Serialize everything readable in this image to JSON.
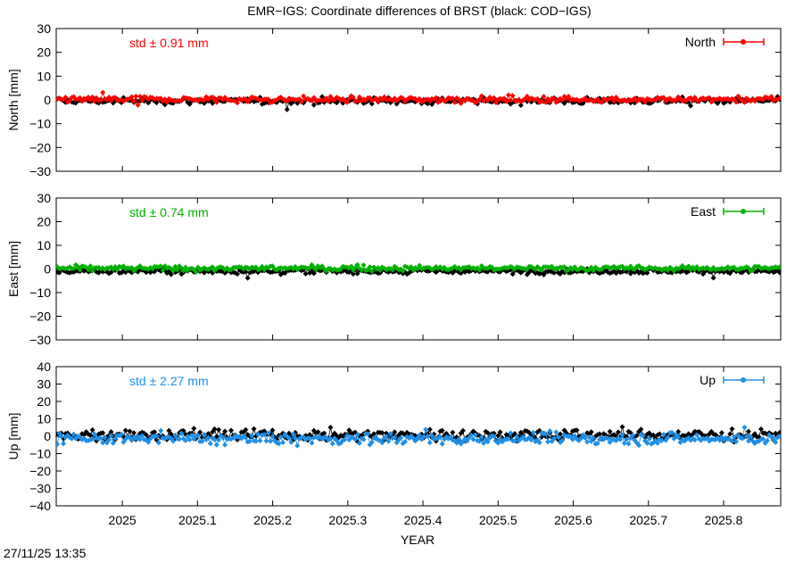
{
  "chart_data": {
    "type": "scatter",
    "title": "EMR−IGS: Coordinate differences of BRST (black: COD−IGS)",
    "xlabel": "YEAR",
    "xlim": [
      2024.912,
      2025.876
    ],
    "xticks": [
      "2025",
      "2025.1",
      "2025.2",
      "2025.3",
      "2025.4",
      "2025.5",
      "2025.6",
      "2025.7",
      "2025.8"
    ],
    "grid": false,
    "panels": [
      {
        "ylabel": "North [mm]",
        "ylim": [
          -30,
          30
        ],
        "yticks": [
          "30",
          "20",
          "10",
          "0",
          "−10",
          "−20",
          "−30"
        ],
        "legend": "North",
        "legend_position": "top-right",
        "std_label": "std ± 0.91 mm",
        "color": "#ff0000",
        "series": [
          {
            "name": "EMR−IGS",
            "color": "#ff0000",
            "mean": 0.2,
            "std": 0.91
          },
          {
            "name": "COD−IGS",
            "color": "#000000",
            "mean": -0.4,
            "std": 0.9
          }
        ]
      },
      {
        "ylabel": "East [mm]",
        "ylim": [
          -30,
          30
        ],
        "yticks": [
          "30",
          "20",
          "10",
          "0",
          "−10",
          "−20",
          "−30"
        ],
        "legend": "East",
        "legend_position": "top-right",
        "std_label": "std ± 0.74 mm",
        "color": "#00b000",
        "series": [
          {
            "name": "EMR−IGS",
            "color": "#00b000",
            "mean": 0.3,
            "std": 0.74
          },
          {
            "name": "COD−IGS",
            "color": "#000000",
            "mean": -0.9,
            "std": 0.8
          }
        ]
      },
      {
        "ylabel": "Up [mm]",
        "ylim": [
          -40,
          40
        ],
        "yticks": [
          "40",
          "30",
          "20",
          "10",
          "0",
          "−10",
          "−20",
          "−30",
          "−40"
        ],
        "legend": "Up",
        "legend_position": "top-right",
        "std_label": "std ± 2.27 mm",
        "color": "#1e8fe6",
        "series": [
          {
            "name": "EMR−IGS",
            "color": "#1e8fe6",
            "mean": -1.5,
            "std": 2.27
          },
          {
            "name": "COD−IGS",
            "color": "#000000",
            "mean": 0.8,
            "std": 2.4
          }
        ]
      }
    ]
  },
  "footer": {
    "timestamp": "27/11/25 13:35"
  }
}
